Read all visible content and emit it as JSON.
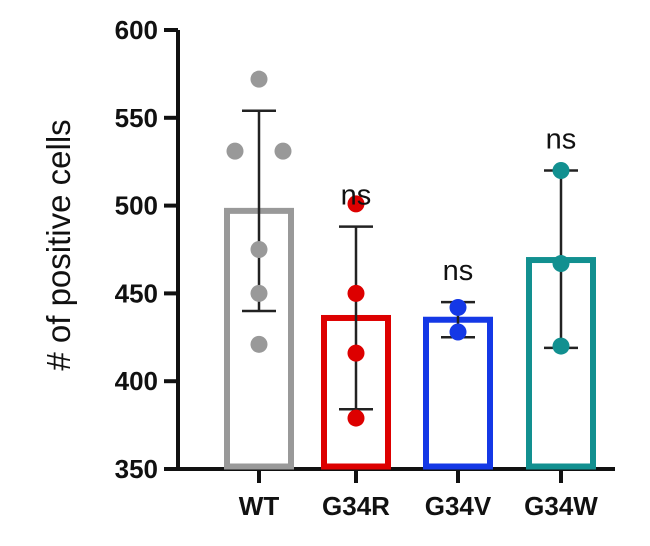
{
  "chart_data": {
    "type": "bar",
    "ylabel": "# of positive cells",
    "xlabel": "",
    "ylim": [
      350,
      600
    ],
    "yticks": [
      350,
      400,
      450,
      500,
      550,
      600
    ],
    "categories": [
      "WT",
      "G34R",
      "G34V",
      "G34W"
    ],
    "values": [
      497,
      436,
      435,
      469
    ],
    "error_low": [
      440,
      384,
      425,
      419
    ],
    "error_high": [
      554,
      488,
      445,
      520
    ],
    "points": [
      [
        572,
        531,
        531,
        475,
        450,
        421
      ],
      [
        501,
        450,
        416,
        379
      ],
      [
        442,
        428
      ],
      [
        520,
        467,
        420
      ]
    ],
    "significance": [
      "",
      "ns",
      "ns",
      "ns"
    ],
    "colors": [
      "#999999",
      "#dd0000",
      "#1438e6",
      "#129090"
    ],
    "grid": false,
    "legend": "none"
  }
}
